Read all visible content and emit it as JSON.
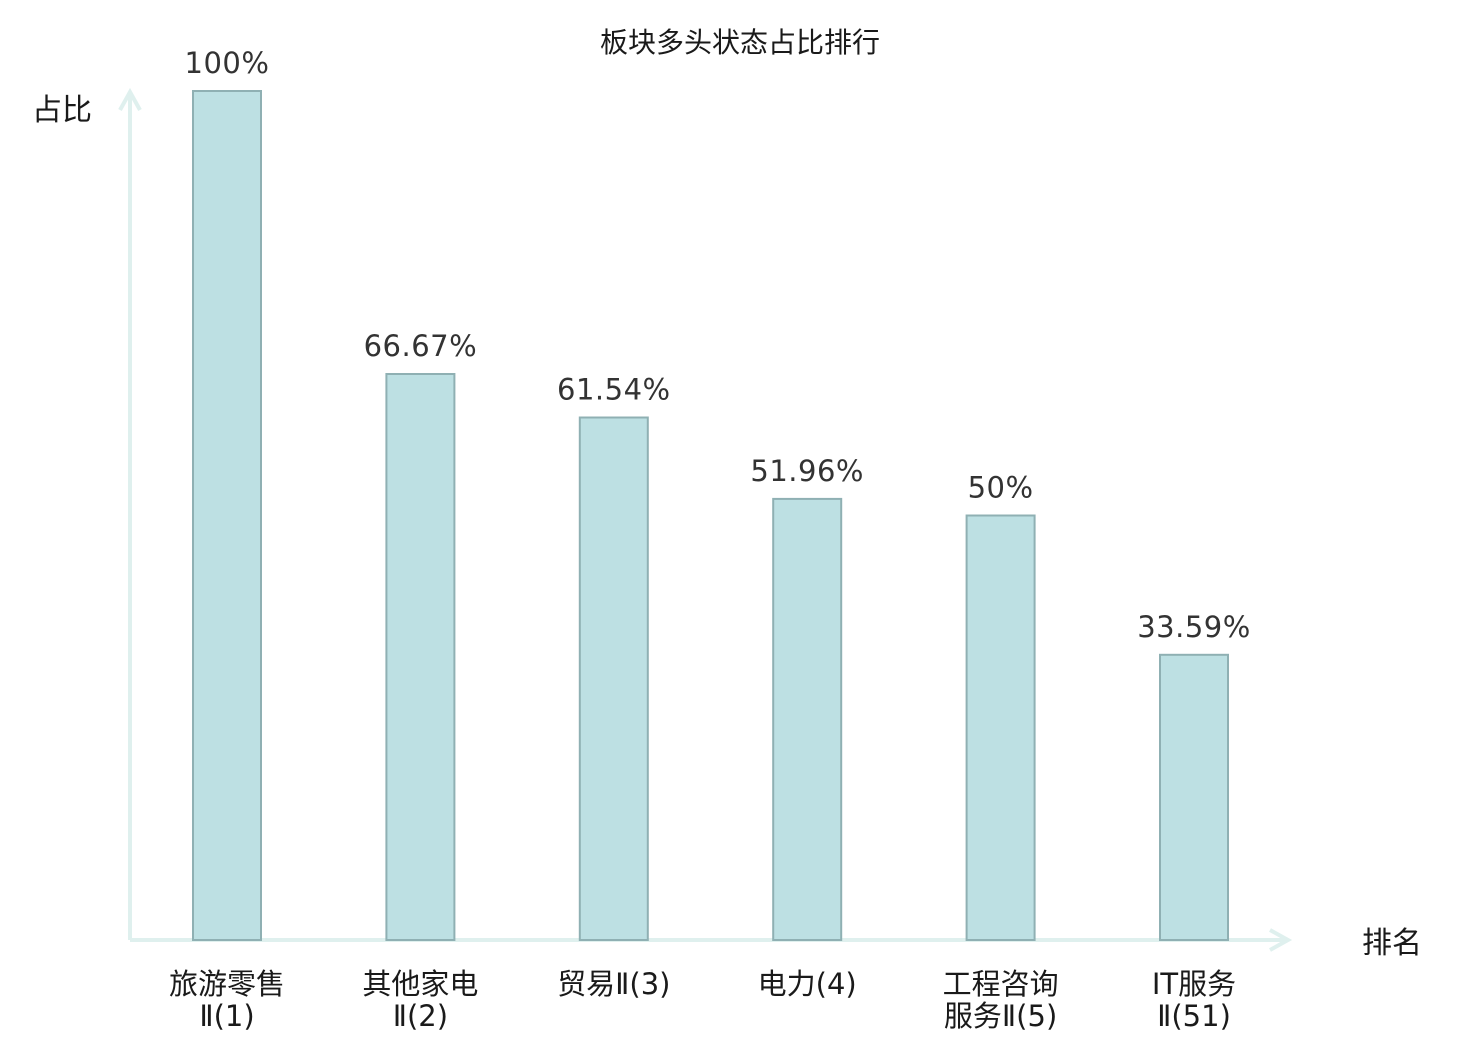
{
  "chart_data": {
    "type": "bar",
    "title": "板块多头状态占比排行",
    "xlabel": "排名",
    "ylabel": "占比",
    "ylim": [
      0,
      100
    ],
    "grid": false,
    "categories": [
      [
        "旅游零售",
        "Ⅱ(1)"
      ],
      [
        "其他家电",
        "Ⅱ(2)"
      ],
      [
        "贸易Ⅱ(3)"
      ],
      [
        "电力(4)"
      ],
      [
        "工程咨询",
        "服务Ⅱ(5)"
      ],
      [
        "IT服务",
        "Ⅱ(51)"
      ]
    ],
    "values": [
      100,
      66.67,
      61.54,
      51.96,
      50,
      33.59
    ],
    "value_labels": [
      "100%",
      "66.67%",
      "61.54%",
      "51.96%",
      "50%",
      "33.59%"
    ],
    "highlight_index": 5,
    "colors": {
      "bar_fill": "#bde0e3",
      "bar_stroke": "#8fb0b3",
      "axis": "#dff0ee",
      "highlight_text": "#e0191b",
      "text": "#1a1a1a"
    }
  }
}
